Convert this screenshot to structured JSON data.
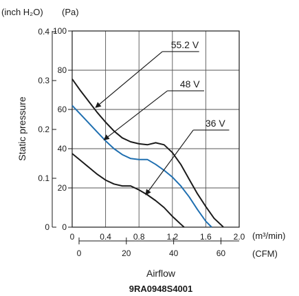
{
  "chart_data": {
    "type": "line",
    "model": "9RA0948S4001",
    "ylabel": "Static pressure",
    "xlabel": "Airflow",
    "y_unit_left": "(inch H₂O)",
    "y_unit_right": "(Pa)",
    "x_unit_top": "(m³/min)",
    "x_unit_bottom": "(CFM)",
    "xlim": [
      0,
      2.0
    ],
    "ylim": [
      0,
      100
    ],
    "x_ticks": [
      "0",
      "0.4",
      "0.8",
      "1.2",
      "1.6",
      "2.0"
    ],
    "y_ticks": [
      "0",
      "20",
      "40",
      "60",
      "80",
      "100"
    ],
    "y_ticks_inch": [
      "0",
      "0.1",
      "0.2",
      "0.3",
      "0.4"
    ],
    "x_ticks_cfm": [
      "0",
      "20",
      "40",
      "60"
    ],
    "grid": true,
    "series": [
      {
        "name": "55.2 V",
        "color": "#1a1a1a",
        "x": [
          0,
          0.1,
          0.2,
          0.3,
          0.4,
          0.5,
          0.6,
          0.7,
          0.8,
          0.9,
          1.0,
          1.1,
          1.2,
          1.3,
          1.4,
          1.5,
          1.6,
          1.7,
          1.8,
          1.81
        ],
        "y": [
          75.5,
          69.5,
          64.0,
          58.5,
          53.5,
          49.0,
          45.5,
          43.5,
          42.5,
          42.0,
          43.0,
          42.0,
          38.0,
          32.0,
          24.5,
          17.0,
          10.5,
          4.5,
          0.5,
          0
        ]
      },
      {
        "name": "48 V",
        "color": "#1f6fb0",
        "x": [
          0,
          0.1,
          0.2,
          0.3,
          0.4,
          0.5,
          0.6,
          0.7,
          0.8,
          0.9,
          1.0,
          1.1,
          1.2,
          1.3,
          1.4,
          1.5,
          1.6,
          1.67
        ],
        "y": [
          62.0,
          57.5,
          53.0,
          48.5,
          44.0,
          40.0,
          37.0,
          35.0,
          34.5,
          34.5,
          32.0,
          29.0,
          25.5,
          21.0,
          15.5,
          9.0,
          3.0,
          0
        ]
      },
      {
        "name": "36 V",
        "color": "#1a1a1a",
        "x": [
          0,
          0.1,
          0.2,
          0.3,
          0.4,
          0.5,
          0.6,
          0.7,
          0.8,
          0.9,
          1.0,
          1.1,
          1.2,
          1.3,
          1.34
        ],
        "y": [
          37.5,
          34.0,
          30.5,
          27.0,
          24.0,
          22.0,
          21.0,
          21.0,
          19.0,
          16.5,
          13.5,
          10.0,
          5.5,
          1.5,
          0
        ]
      }
    ],
    "callouts": [
      {
        "label": "55.2 V",
        "target_x": 0.28,
        "target_y": 61.0,
        "text_x": 1.08,
        "text_y": 89.5,
        "line_end_x": 1.52
      },
      {
        "label": "48 V",
        "target_x": 0.38,
        "target_y": 44.5,
        "text_x": 1.14,
        "text_y": 69.5,
        "line_end_x": 1.58
      },
      {
        "label": "36 V",
        "target_x": 0.88,
        "target_y": 16.5,
        "text_x": 1.45,
        "text_y": 49.5,
        "line_end_x": 1.88
      }
    ]
  }
}
